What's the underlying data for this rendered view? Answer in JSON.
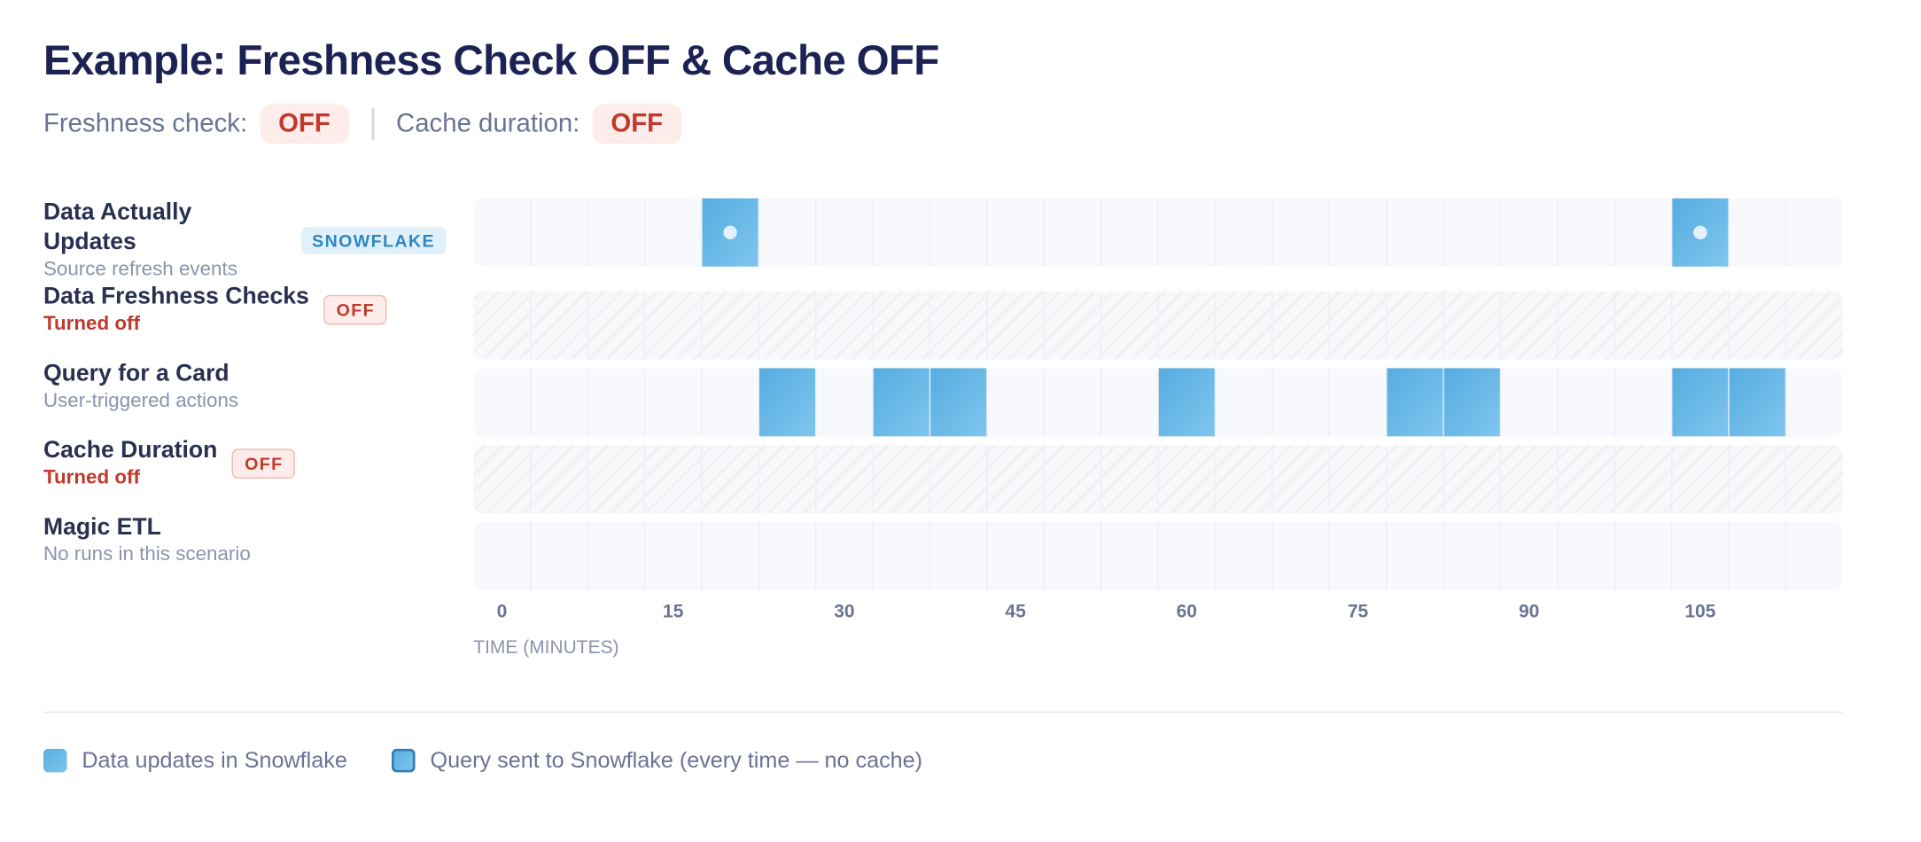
{
  "header": {
    "title": "Example: Freshness Check OFF & Cache OFF",
    "settings": [
      {
        "label": "Freshness check:",
        "value": "OFF"
      },
      {
        "label": "Cache duration:",
        "value": "OFF"
      }
    ]
  },
  "rows": [
    {
      "label": "Data Actually Updates",
      "sublabel": "Source refresh events",
      "badge": "SNOWFLAKE",
      "events": [
        20,
        105
      ]
    },
    {
      "label": "Data Freshness Checks",
      "sublabel": "Turned off",
      "badge": "OFF",
      "disabled": true
    },
    {
      "label": "Query for a Card",
      "sublabel": "User-triggered actions",
      "events": [
        25,
        35,
        40,
        60,
        80,
        85,
        105,
        110
      ]
    },
    {
      "label": "Cache Duration",
      "sublabel": "Turned off",
      "badge": "OFF",
      "disabled": true
    },
    {
      "label": "Magic ETL",
      "sublabel": "No runs in this scenario"
    }
  ],
  "axis": {
    "title": "TIME (MINUTES)",
    "xlim": [
      -2.5,
      117.5
    ],
    "ticks": [
      0,
      15,
      30,
      45,
      60,
      75,
      90,
      105
    ]
  },
  "legend": [
    {
      "label": "Data updates in Snowflake"
    },
    {
      "label": "Query sent to Snowflake (every time — no cache)"
    }
  ]
}
